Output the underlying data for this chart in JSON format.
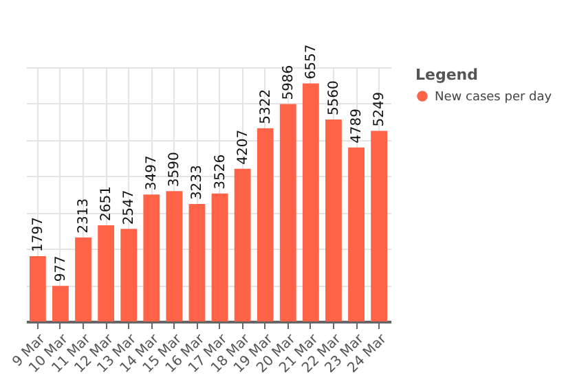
{
  "chart_data": {
    "type": "bar",
    "categories": [
      "9 Mar",
      "10 Mar",
      "11 Mar",
      "12 Mar",
      "13 Mar",
      "14 Mar",
      "15 Mar",
      "16 Mar",
      "17 Mar",
      "18 Mar",
      "19 Mar",
      "20 Mar",
      "21 Mar",
      "22 Mar",
      "23 Mar",
      "24 Mar"
    ],
    "series": [
      {
        "name": "New cases per day",
        "color": "#ff6347",
        "values": [
          1797,
          977,
          2313,
          2651,
          2547,
          3497,
          3590,
          3233,
          3526,
          4207,
          5322,
          5986,
          6557,
          5560,
          4789,
          5249
        ]
      }
    ],
    "legend_title": "Legend",
    "tick_labels": "x",
    "grid": true,
    "legend": "top right",
    "data_labels": true
  }
}
